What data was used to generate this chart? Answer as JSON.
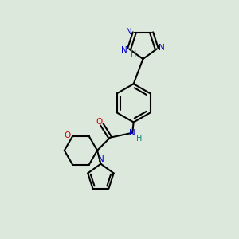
{
  "background_color": "#dde8dd",
  "bond_color": "#000000",
  "N_color": "#0000cc",
  "O_color": "#cc0000",
  "NH_color": "#008080",
  "figsize": [
    3.0,
    3.0
  ],
  "dpi": 100,
  "xlim": [
    0,
    10
  ],
  "ylim": [
    0,
    10
  ]
}
